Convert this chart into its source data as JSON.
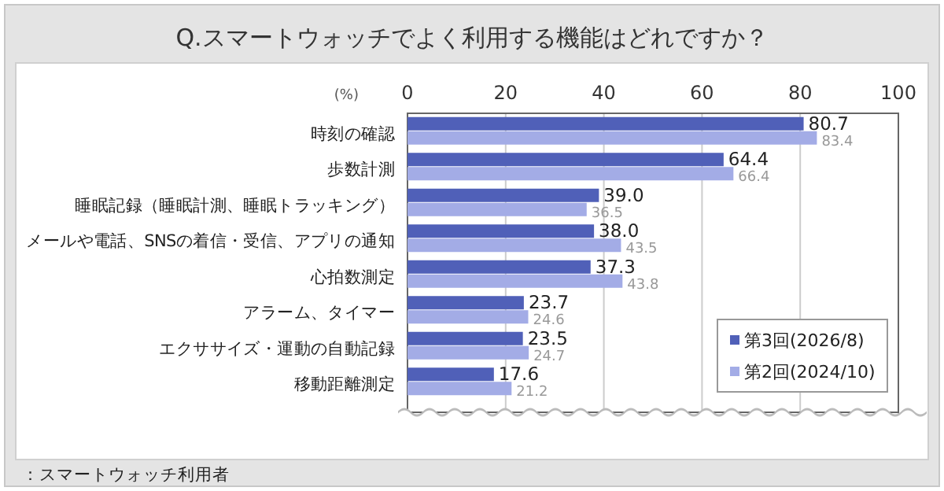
{
  "chart_data": {
    "type": "bar",
    "orientation": "horizontal",
    "title": "Q.スマートウォッチでよく利用する機能はどれですか？",
    "xlabel": "(%)",
    "categories": [
      "時刻の確認",
      "歩数計測",
      "睡眠記録（睡眠計測、睡眠トラッキング）",
      "メールや電話、SNSの着信・受信、アプリの通知",
      "心拍数測定",
      "アラーム、タイマー",
      "エクササイズ・運動の自動記録",
      "移動距離測定"
    ],
    "series": [
      {
        "name": "第3回(2026/8)",
        "color": "#5060b8",
        "values": [
          80.7,
          64.4,
          39.0,
          38.0,
          37.3,
          23.7,
          23.5,
          17.6
        ],
        "value_labels": [
          "80.7",
          "64.4",
          "39.0",
          "38.0",
          "37.3",
          "23.7",
          "23.5",
          "17.6"
        ]
      },
      {
        "name": "第2回(2024/10)",
        "color": "#a3ace6",
        "values": [
          83.4,
          66.4,
          36.5,
          43.5,
          43.8,
          24.6,
          24.7,
          21.2
        ],
        "value_labels": [
          "83.4",
          "66.4",
          "36.5",
          "43.5",
          "43.8",
          "24.6",
          "24.7",
          "21.2"
        ]
      }
    ],
    "xlim": [
      0,
      100
    ],
    "xticks": [
      0,
      20,
      40,
      60,
      80,
      100
    ],
    "grid": "x",
    "legend": "bottom right",
    "annotations": [
      "：スマートウォッチ利用者"
    ]
  }
}
